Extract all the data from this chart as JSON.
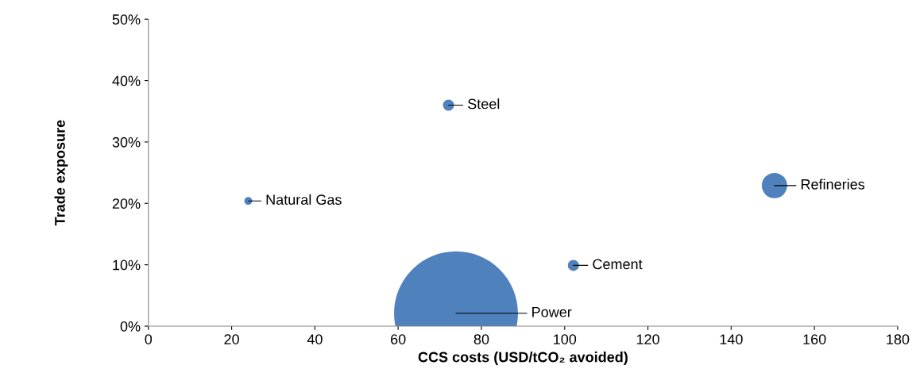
{
  "chart_data": {
    "type": "bubble",
    "xlabel": "CCS costs (USD/tCO₂ avoided)",
    "ylabel": "Trade exposure",
    "series": [
      {
        "color": "#4f81bd",
        "x": [
          24.0,
          72.1,
          150.4,
          102.1,
          73.9
        ],
        "values": [
          20.4,
          36.0,
          22.9,
          9.9,
          2.1
        ],
        "sizes": [
          0.004,
          0.008,
          0.042,
          0.008,
          1
        ]
      }
    ],
    "annotations": [
      {
        "text": "Natural Gas",
        "x": 24.0,
        "y": 20.4
      },
      {
        "text": "Steel",
        "x": 72.1,
        "y": 36.0
      },
      {
        "text": "Refineries",
        "x": 150.4,
        "y": 22.9
      },
      {
        "text": "Cement",
        "x": 102.1,
        "y": 9.9
      },
      {
        "text": "Power",
        "x": 73.9,
        "y": 2.1
      }
    ],
    "xlim": [
      0,
      180
    ],
    "xticks": [
      0,
      20,
      40,
      60,
      80,
      100,
      120,
      140,
      160,
      180
    ],
    "ylim": [
      0,
      50
    ],
    "yticks": [
      {
        "value": 0,
        "label": "0%"
      },
      {
        "value": 10,
        "label": "10%"
      },
      {
        "value": 20,
        "label": "20%"
      },
      {
        "value": 30,
        "label": "30%"
      },
      {
        "value": 40,
        "label": "40%"
      },
      {
        "value": 50,
        "label": "50%"
      }
    ],
    "grid": false,
    "legend": false
  }
}
